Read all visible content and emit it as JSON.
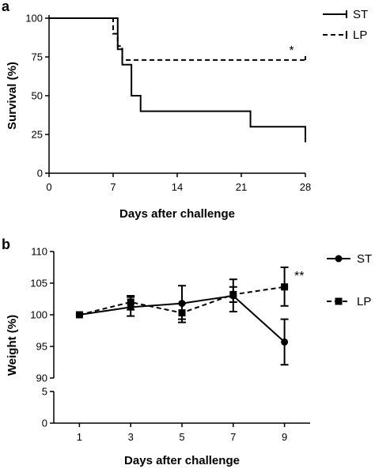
{
  "chart_data": [
    {
      "panel": "a",
      "type": "line",
      "subtype": "step",
      "xlabel": "Days after challenge",
      "ylabel": "Survival (%)",
      "xlim": [
        0,
        28
      ],
      "ylim": [
        0,
        100
      ],
      "xticks": [
        0,
        7,
        14,
        21,
        28
      ],
      "yticks": [
        0,
        25,
        50,
        75,
        100
      ],
      "legend_position": "top-right",
      "series": [
        {
          "name": "ST",
          "style": "solid",
          "x": [
            0,
            7,
            7.5,
            8,
            9,
            10,
            19,
            22,
            28
          ],
          "y": [
            100,
            100,
            80,
            70,
            50,
            40,
            40,
            30,
            20
          ],
          "end_x": 28
        },
        {
          "name": "LP",
          "style": "dashed",
          "x": [
            0,
            6,
            7,
            7.5,
            8,
            28
          ],
          "y": [
            100,
            100,
            90,
            82,
            73,
            73
          ],
          "end_x": 28
        }
      ],
      "annotations": [
        {
          "text": "*",
          "x": 27,
          "y": 76
        }
      ]
    },
    {
      "panel": "b",
      "type": "line",
      "xlabel": "Days after challenge",
      "ylabel": "Weight (%)",
      "x": [
        1,
        3,
        5,
        7,
        9
      ],
      "xlim": [
        0,
        10
      ],
      "xticks": [
        1,
        3,
        5,
        7,
        9
      ],
      "yticks_upper": [
        90,
        95,
        100,
        105,
        110
      ],
      "yticks_lower": [
        0,
        5
      ],
      "ylim_upper": [
        90,
        110
      ],
      "ylim_lower": [
        0,
        5
      ],
      "axis_break": true,
      "legend_position": "top-right",
      "series": [
        {
          "name": "ST",
          "style": "solid",
          "marker": "circle",
          "values": [
            100,
            101.2,
            101.8,
            103.0,
            95.7
          ],
          "err_low": [
            100,
            99.8,
            99.3,
            100.5,
            92.1
          ],
          "err_high": [
            100,
            102.8,
            104.6,
            105.6,
            99.3
          ]
        },
        {
          "name": "LP",
          "style": "dashed",
          "marker": "square",
          "values": [
            100,
            102.0,
            100.3,
            103.2,
            104.4
          ],
          "err_low": [
            100,
            100.8,
            98.8,
            102.0,
            101.4
          ],
          "err_high": [
            100,
            103.0,
            101.8,
            104.4,
            107.5
          ]
        }
      ],
      "annotations": [
        {
          "text": "**",
          "x": 9.6,
          "y": 105.6
        }
      ]
    }
  ],
  "panel_a": {
    "letter": "a",
    "legend": [
      "ST",
      "LP"
    ],
    "sig_label": "*"
  },
  "panel_b": {
    "letter": "b",
    "legend": [
      "ST",
      "LP"
    ],
    "sig_label": "**"
  }
}
